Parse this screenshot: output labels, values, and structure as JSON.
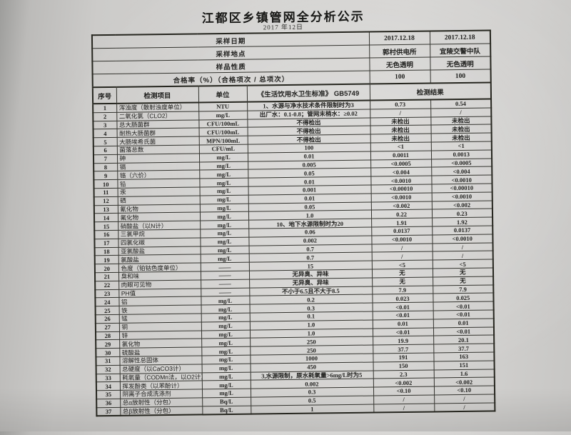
{
  "title": "江都区乡镇管网全分析公示",
  "subtitle": "2017 年12日",
  "meta_rows": [
    {
      "label": "采样日期",
      "v1": "2017.12.18",
      "v2": "2017.12.18"
    },
    {
      "label": "采样地点",
      "v1": "郭村供电所",
      "v2": "宜陵交警中队"
    },
    {
      "label": "样品性质",
      "v1": "无色透明",
      "v2": "无色透明"
    },
    {
      "label": "合格率（%）（合格项次 / 总项次）",
      "v1": "100",
      "v2": "100"
    }
  ],
  "columns": {
    "no": "序号",
    "item": "检测项目",
    "unit": "单位",
    "standard": "《生活饮用水卫生标准》 GB5749",
    "result": "检测结果"
  },
  "rows": [
    {
      "no": "1",
      "item": "浑浊度（散射浊度单位）",
      "unit": "NTU",
      "standard": "1、水源与净水技术条件限制时为3",
      "r1": "0.73",
      "r2": "0.54"
    },
    {
      "no": "2",
      "item": "二氧化氯（CLO2）",
      "unit": "mg/L",
      "standard": "出厂水：0.1-0.8；管网末梢水：≥0.02",
      "r1": "/",
      "r2": "/"
    },
    {
      "no": "3",
      "item": "总大肠菌群",
      "unit": "CFU/100mL",
      "standard": "不得检出",
      "r1": "未检出",
      "r2": "未检出"
    },
    {
      "no": "4",
      "item": "耐热大肠菌群",
      "unit": "CFU/100mL",
      "standard": "不得检出",
      "r1": "未检出",
      "r2": "未检出"
    },
    {
      "no": "5",
      "item": "大肠埃希氏菌",
      "unit": "MPN/100mL",
      "standard": "不得检出",
      "r1": "未检出",
      "r2": "未检出"
    },
    {
      "no": "6",
      "item": "菌落总数",
      "unit": "CFU/mL",
      "standard": "100",
      "r1": "<1",
      "r2": "<1"
    },
    {
      "no": "7",
      "item": "砷",
      "unit": "mg/L",
      "standard": "0.01",
      "r1": "0.0011",
      "r2": "0.0013"
    },
    {
      "no": "8",
      "item": "镉",
      "unit": "mg/L",
      "standard": "0.005",
      "r1": "<0.0005",
      "r2": "<0.0005"
    },
    {
      "no": "9",
      "item": "铬（六价）",
      "unit": "mg/L",
      "standard": "0.05",
      "r1": "<0.004",
      "r2": "<0.004"
    },
    {
      "no": "10",
      "item": "铅",
      "unit": "mg/L",
      "standard": "0.01",
      "r1": "<0.0010",
      "r2": "<0.0010"
    },
    {
      "no": "11",
      "item": "汞",
      "unit": "mg/L",
      "standard": "0.001",
      "r1": "<0.00010",
      "r2": "<0.00010"
    },
    {
      "no": "12",
      "item": "硒",
      "unit": "mg/L",
      "standard": "0.01",
      "r1": "<0.0010",
      "r2": "<0.0010"
    },
    {
      "no": "13",
      "item": "氰化物",
      "unit": "mg/L",
      "standard": "0.05",
      "r1": "<0.002",
      "r2": "<0.002"
    },
    {
      "no": "14",
      "item": "氟化物",
      "unit": "mg/L",
      "standard": "1.0",
      "r1": "0.22",
      "r2": "0.23"
    },
    {
      "no": "15",
      "item": "硝酸盐（以N计）",
      "unit": "mg/L",
      "standard": "10、地下水源限制时为20",
      "r1": "1.91",
      "r2": "1.92"
    },
    {
      "no": "16",
      "item": "三氯甲烷",
      "unit": "mg/L",
      "standard": "0.06",
      "r1": "0.0137",
      "r2": "0.0137"
    },
    {
      "no": "17",
      "item": "四氯化碳",
      "unit": "mg/L",
      "standard": "0.002",
      "r1": "<0.0010",
      "r2": "<0.0010"
    },
    {
      "no": "18",
      "item": "亚氯酸盐",
      "unit": "mg/L",
      "standard": "0.7",
      "r1": "/",
      "r2": "/"
    },
    {
      "no": "19",
      "item": "氯酸盐",
      "unit": "mg/L",
      "standard": "0.7",
      "r1": "/",
      "r2": "/"
    },
    {
      "no": "20",
      "item": "色度（铂钴色度单位）",
      "unit": "——",
      "standard": "15",
      "r1": "<5",
      "r2": "<5"
    },
    {
      "no": "21",
      "item": "臭和味",
      "unit": "——",
      "standard": "无异臭、异味",
      "r1": "无",
      "r2": "无"
    },
    {
      "no": "22",
      "item": "肉眼可见物",
      "unit": "——",
      "standard": "无异臭、异味",
      "r1": "无",
      "r2": "无"
    },
    {
      "no": "23",
      "item": "PH值",
      "unit": "——",
      "standard": "不小于6.5且不大于8.5",
      "r1": "7.9",
      "r2": "7.9"
    },
    {
      "no": "24",
      "item": "铝",
      "unit": "mg/L",
      "standard": "0.2",
      "r1": "0.023",
      "r2": "0.025"
    },
    {
      "no": "25",
      "item": "铁",
      "unit": "mg/L",
      "standard": "0.3",
      "r1": "<0.01",
      "r2": "<0.01"
    },
    {
      "no": "26",
      "item": "锰",
      "unit": "mg/L",
      "standard": "0.1",
      "r1": "<0.01",
      "r2": "<0.01"
    },
    {
      "no": "27",
      "item": "铜",
      "unit": "mg/L",
      "standard": "1.0",
      "r1": "0.01",
      "r2": "0.01"
    },
    {
      "no": "28",
      "item": "锌",
      "unit": "mg/L",
      "standard": "1.0",
      "r1": "<0.01",
      "r2": "<0.01"
    },
    {
      "no": "29",
      "item": "氯化物",
      "unit": "mg/L",
      "standard": "250",
      "r1": "19.9",
      "r2": "20.1"
    },
    {
      "no": "30",
      "item": "硫酸盐",
      "unit": "mg/L",
      "standard": "250",
      "r1": "37.7",
      "r2": "37.7"
    },
    {
      "no": "31",
      "item": "溶解性总固体",
      "unit": "mg/L",
      "standard": "1000",
      "r1": "191",
      "r2": "163"
    },
    {
      "no": "32",
      "item": "总硬度（以CaCO3计）",
      "unit": "mg/L",
      "standard": "450",
      "r1": "150",
      "r2": "151"
    },
    {
      "no": "33",
      "item": "耗氧量（CODMn法，以O2计）",
      "unit": "mg/L",
      "standard": "3,水源限制，原水耗氧量>6mg/L时为5",
      "r1": "2.3",
      "r2": "1.6"
    },
    {
      "no": "34",
      "item": "挥发酚类（以苯酚计）",
      "unit": "mg/L",
      "standard": "0.002",
      "r1": "<0.002",
      "r2": "<0.002"
    },
    {
      "no": "35",
      "item": "阴离子合成洗涤剂",
      "unit": "mg/L",
      "standard": "0.3",
      "r1": "<0.10",
      "r2": "<0.10"
    },
    {
      "no": "36",
      "item": "总α放射性（分包）",
      "unit": "Bq/L",
      "standard": "0.5",
      "r1": "/",
      "r2": "/"
    },
    {
      "no": "37",
      "item": "总β放射性（分包）",
      "unit": "Bq/L",
      "standard": "1",
      "r1": "/",
      "r2": "/"
    }
  ]
}
